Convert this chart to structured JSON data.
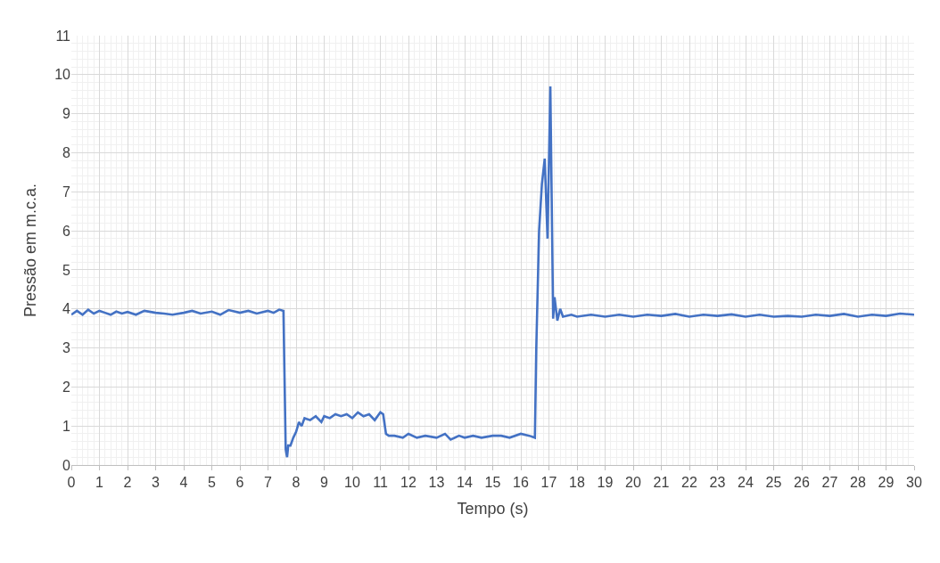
{
  "chart_data": {
    "type": "line",
    "xlabel": "Tempo (s)",
    "ylabel": "Pressão em m.c.a.",
    "xlim": [
      0,
      30
    ],
    "ylim": [
      0,
      11
    ],
    "xticks": [
      0,
      1,
      2,
      3,
      4,
      5,
      6,
      7,
      8,
      9,
      10,
      11,
      12,
      13,
      14,
      15,
      16,
      17,
      18,
      19,
      20,
      21,
      22,
      23,
      24,
      25,
      26,
      27,
      28,
      29,
      30
    ],
    "yticks": [
      0,
      1,
      2,
      3,
      4,
      5,
      6,
      7,
      8,
      9,
      10,
      11
    ],
    "grid": true,
    "marker": "none",
    "line_style": "solid",
    "series": [
      {
        "color": "#4472c4",
        "x": [
          0,
          0.2,
          0.4,
          0.6,
          0.8,
          1.0,
          1.2,
          1.4,
          1.6,
          1.8,
          2.0,
          2.3,
          2.6,
          3.0,
          3.3,
          3.6,
          4.0,
          4.3,
          4.6,
          5.0,
          5.3,
          5.6,
          6.0,
          6.3,
          6.6,
          7.0,
          7.2,
          7.4,
          7.55,
          7.63,
          7.68,
          7.72,
          7.8,
          7.9,
          8.0,
          8.1,
          8.2,
          8.3,
          8.5,
          8.7,
          8.9,
          9.0,
          9.2,
          9.4,
          9.6,
          9.8,
          10.0,
          10.2,
          10.4,
          10.6,
          10.8,
          11.0,
          11.1,
          11.2,
          11.3,
          11.5,
          11.8,
          12.0,
          12.3,
          12.6,
          13.0,
          13.3,
          13.5,
          13.8,
          14.0,
          14.3,
          14.6,
          15.0,
          15.3,
          15.6,
          16.0,
          16.3,
          16.5,
          16.55,
          16.65,
          16.75,
          16.85,
          16.95,
          17.05,
          17.15,
          17.2,
          17.3,
          17.4,
          17.5,
          17.8,
          18.0,
          18.5,
          19.0,
          19.5,
          20.0,
          20.5,
          21.0,
          21.5,
          22.0,
          22.5,
          23.0,
          23.5,
          24.0,
          24.5,
          25.0,
          25.5,
          26.0,
          26.5,
          27.0,
          27.5,
          28.0,
          28.5,
          29.0,
          29.5,
          30.0
        ],
        "values": [
          3.85,
          3.95,
          3.85,
          3.98,
          3.88,
          3.95,
          3.9,
          3.85,
          3.93,
          3.88,
          3.92,
          3.85,
          3.95,
          3.9,
          3.88,
          3.85,
          3.9,
          3.95,
          3.88,
          3.93,
          3.85,
          3.97,
          3.9,
          3.95,
          3.88,
          3.95,
          3.9,
          3.98,
          3.95,
          0.4,
          0.2,
          0.5,
          0.5,
          0.7,
          0.85,
          1.1,
          1.0,
          1.2,
          1.15,
          1.25,
          1.1,
          1.25,
          1.2,
          1.3,
          1.25,
          1.3,
          1.2,
          1.35,
          1.25,
          1.3,
          1.15,
          1.35,
          1.3,
          0.8,
          0.75,
          0.75,
          0.7,
          0.8,
          0.7,
          0.75,
          0.7,
          0.8,
          0.65,
          0.75,
          0.7,
          0.75,
          0.7,
          0.75,
          0.75,
          0.7,
          0.8,
          0.75,
          0.7,
          3.0,
          6.0,
          7.2,
          7.85,
          5.8,
          9.7,
          3.75,
          4.3,
          3.7,
          4.0,
          3.8,
          3.85,
          3.8,
          3.85,
          3.8,
          3.85,
          3.8,
          3.85,
          3.82,
          3.87,
          3.8,
          3.85,
          3.82,
          3.86,
          3.8,
          3.85,
          3.8,
          3.82,
          3.8,
          3.85,
          3.82,
          3.87,
          3.8,
          3.85,
          3.82,
          3.88,
          3.85
        ]
      }
    ]
  }
}
